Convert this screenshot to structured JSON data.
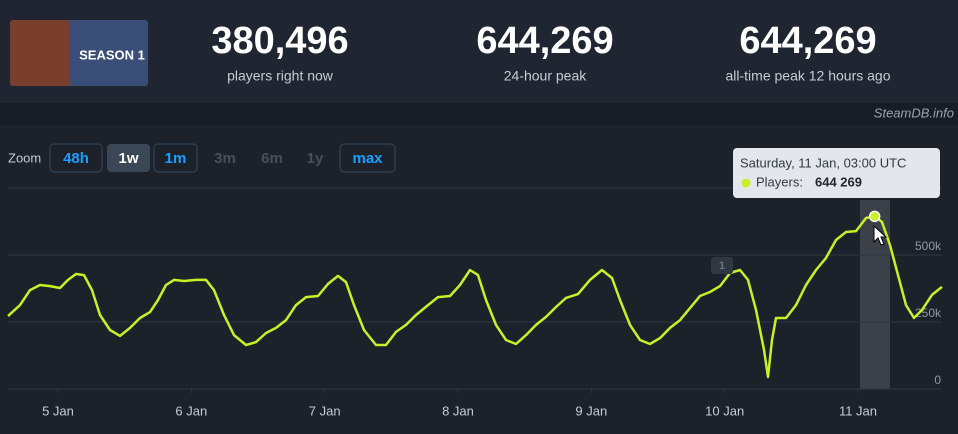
{
  "header": {
    "thumbnail_text": "SEASON 1",
    "stats": [
      {
        "value": "380,496",
        "label": "players right now"
      },
      {
        "value": "644,269",
        "label": "24-hour peak"
      },
      {
        "value": "644,269",
        "label": "all-time peak 12 hours ago"
      }
    ],
    "source": "SteamDB.info"
  },
  "zoom": {
    "label": "Zoom",
    "buttons": [
      "48h",
      "1w",
      "1m",
      "3m",
      "6m",
      "1y",
      "max"
    ]
  },
  "tooltip": {
    "date": "Saturday, 11 Jan, 03:00 UTC",
    "label": "Players:",
    "value": "644 269"
  },
  "annotation": "1",
  "chart_data": {
    "type": "line",
    "x": [
      4.625,
      4.715,
      4.79,
      4.865,
      4.94,
      5.015,
      5.075,
      5.135,
      5.195,
      5.255,
      5.315,
      5.39,
      5.465,
      5.54,
      5.615,
      5.69,
      5.75,
      5.81,
      5.87,
      5.945,
      6.035,
      6.11,
      6.17,
      6.245,
      6.32,
      6.41,
      6.485,
      6.56,
      6.635,
      6.71,
      6.785,
      6.86,
      6.95,
      7.025,
      7.1,
      7.16,
      7.22,
      7.295,
      7.385,
      7.46,
      7.535,
      7.61,
      7.685,
      7.775,
      7.85,
      7.94,
      8.015,
      8.09,
      8.15,
      8.21,
      8.285,
      8.36,
      8.435,
      8.51,
      8.585,
      8.66,
      8.735,
      8.81,
      8.9,
      8.99,
      9.08,
      9.155,
      9.215,
      9.29,
      9.365,
      9.44,
      9.515,
      9.59,
      9.665,
      9.74,
      9.815,
      9.89,
      9.965,
      10.04,
      10.115,
      10.175,
      10.235,
      10.295,
      10.325,
      10.355,
      10.385,
      10.46,
      10.535,
      10.61,
      10.685,
      10.76,
      10.835,
      10.91,
      10.985,
      11.06,
      11.125,
      11.18,
      11.24,
      11.3,
      11.36,
      11.42,
      11.48,
      11.555,
      11.63
    ],
    "series": [
      {
        "name": "Players",
        "color": "#c8f026",
        "values": [
          272000,
          313000,
          369000,
          388000,
          384000,
          377000,
          407000,
          429000,
          425000,
          369000,
          276000,
          220000,
          198000,
          228000,
          265000,
          287000,
          332000,
          388000,
          407000,
          403000,
          407000,
          407000,
          369000,
          276000,
          201000,
          164000,
          175000,
          209000,
          228000,
          257000,
          313000,
          343000,
          347000,
          392000,
          422000,
          399000,
          313000,
          220000,
          164000,
          164000,
          213000,
          239000,
          276000,
          313000,
          343000,
          347000,
          388000,
          444000,
          425000,
          332000,
          239000,
          183000,
          168000,
          201000,
          239000,
          269000,
          306000,
          340000,
          354000,
          407000,
          444000,
          414000,
          332000,
          239000,
          183000,
          168000,
          190000,
          228000,
          257000,
          302000,
          347000,
          362000,
          384000,
          433000,
          444000,
          407000,
          295000,
          146000,
          45000,
          183000,
          265000,
          265000,
          313000,
          388000,
          444000,
          489000,
          556000,
          586000,
          589000,
          638000,
          644269,
          623000,
          537000,
          425000,
          313000,
          265000,
          295000,
          351000,
          381000
        ]
      }
    ],
    "xlim": [
      4.625,
      11.63
    ],
    "xticks": [
      {
        "value": 5,
        "label": "5 Jan"
      },
      {
        "value": 6,
        "label": "6 Jan"
      },
      {
        "value": 7,
        "label": "7 Jan"
      },
      {
        "value": 8,
        "label": "8 Jan"
      },
      {
        "value": 9,
        "label": "9 Jan"
      },
      {
        "value": 10,
        "label": "10 Jan"
      },
      {
        "value": 11,
        "label": "11 Jan"
      }
    ],
    "ylim": [
      0,
      750000
    ],
    "yticks": [
      0,
      {
        "value": 250000,
        "label": "250k"
      },
      {
        "value": 500000,
        "label": "500k"
      }
    ],
    "grid": true
  }
}
